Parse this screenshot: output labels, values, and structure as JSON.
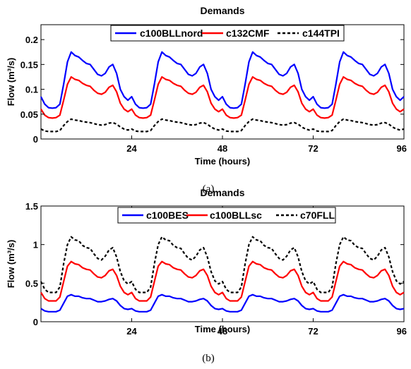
{
  "chart_data": [
    {
      "type": "line",
      "title": "Demands",
      "xlabel": "Time (hours)",
      "ylabel": "Flow (m³/s)",
      "caption": "(a)",
      "xlim": [
        0,
        96
      ],
      "ylim": [
        0,
        0.23
      ],
      "xticks": [
        24,
        48,
        72,
        96
      ],
      "xtick_labels": [
        "24",
        "48",
        "72",
        "96"
      ],
      "yticks": [
        0,
        0.05,
        0.1,
        0.15,
        0.2
      ],
      "ytick_labels": [
        "0",
        "0.05",
        "0.1",
        "0.15",
        "0.2"
      ],
      "legend_position": "top-center",
      "series": [
        {
          "name": "c100BLLnord",
          "color": "#0000ff",
          "style": "solid",
          "x": [
            0,
            1,
            2,
            3,
            4,
            5,
            6,
            7,
            8,
            9,
            10,
            11,
            12,
            13,
            14,
            15,
            16,
            17,
            18,
            19,
            20,
            21,
            22,
            23,
            24
          ],
          "values": [
            0.085,
            0.07,
            0.063,
            0.062,
            0.063,
            0.07,
            0.11,
            0.155,
            0.175,
            0.168,
            0.165,
            0.158,
            0.152,
            0.15,
            0.14,
            0.13,
            0.127,
            0.132,
            0.145,
            0.15,
            0.132,
            0.1,
            0.085,
            0.078,
            0.085
          ]
        },
        {
          "name": "c132CMF",
          "color": "#ff0000",
          "style": "solid",
          "x": [
            0,
            1,
            2,
            3,
            4,
            5,
            6,
            7,
            8,
            9,
            10,
            11,
            12,
            13,
            14,
            15,
            16,
            17,
            18,
            19,
            20,
            21,
            22,
            23,
            24
          ],
          "values": [
            0.06,
            0.048,
            0.043,
            0.042,
            0.043,
            0.048,
            0.078,
            0.11,
            0.125,
            0.12,
            0.118,
            0.112,
            0.108,
            0.106,
            0.098,
            0.092,
            0.09,
            0.094,
            0.104,
            0.108,
            0.095,
            0.072,
            0.06,
            0.055,
            0.06
          ]
        },
        {
          "name": "c144TPI",
          "color": "#000000",
          "style": "dashed",
          "x": [
            0,
            1,
            2,
            3,
            4,
            5,
            6,
            7,
            8,
            9,
            10,
            11,
            12,
            13,
            14,
            15,
            16,
            17,
            18,
            19,
            20,
            21,
            22,
            23,
            24
          ],
          "values": [
            0.02,
            0.016,
            0.015,
            0.015,
            0.015,
            0.017,
            0.027,
            0.035,
            0.04,
            0.038,
            0.037,
            0.035,
            0.034,
            0.033,
            0.031,
            0.029,
            0.028,
            0.029,
            0.032,
            0.033,
            0.03,
            0.024,
            0.02,
            0.018,
            0.02
          ]
        }
      ]
    },
    {
      "type": "line",
      "title": "Demands",
      "xlabel": "Time (hours)",
      "ylabel": "Flow (m³/s)",
      "caption": "(b)",
      "xlim": [
        0,
        96
      ],
      "ylim": [
        0,
        1.5
      ],
      "xticks": [
        24,
        48,
        72,
        96
      ],
      "xtick_labels": [
        "24",
        "48",
        "72",
        "96"
      ],
      "yticks": [
        0,
        0.5,
        1,
        1.5
      ],
      "ytick_labels": [
        "0",
        "0.5",
        "1",
        "1.5"
      ],
      "legend_position": "top-center",
      "series": [
        {
          "name": "c100BES",
          "color": "#0000ff",
          "style": "solid",
          "x": [
            0,
            1,
            2,
            3,
            4,
            5,
            6,
            7,
            8,
            9,
            10,
            11,
            12,
            13,
            14,
            15,
            16,
            17,
            18,
            19,
            20,
            21,
            22,
            23,
            24
          ],
          "values": [
            0.17,
            0.14,
            0.13,
            0.13,
            0.13,
            0.15,
            0.24,
            0.33,
            0.35,
            0.33,
            0.33,
            0.31,
            0.3,
            0.3,
            0.28,
            0.26,
            0.26,
            0.27,
            0.29,
            0.3,
            0.27,
            0.21,
            0.17,
            0.16,
            0.17
          ]
        },
        {
          "name": "c100BLLsc",
          "color": "#ff0000",
          "style": "solid",
          "x": [
            0,
            1,
            2,
            3,
            4,
            5,
            6,
            7,
            8,
            9,
            10,
            11,
            12,
            13,
            14,
            15,
            16,
            17,
            18,
            19,
            20,
            21,
            22,
            23,
            24
          ],
          "values": [
            0.38,
            0.3,
            0.27,
            0.27,
            0.27,
            0.32,
            0.52,
            0.72,
            0.78,
            0.75,
            0.74,
            0.7,
            0.68,
            0.67,
            0.62,
            0.58,
            0.57,
            0.6,
            0.66,
            0.68,
            0.6,
            0.46,
            0.38,
            0.35,
            0.38
          ]
        },
        {
          "name": "c70FLL",
          "color": "#000000",
          "style": "dashed",
          "x": [
            0,
            1,
            2,
            3,
            4,
            5,
            6,
            7,
            8,
            9,
            10,
            11,
            12,
            13,
            14,
            15,
            16,
            17,
            18,
            19,
            20,
            21,
            22,
            23,
            24
          ],
          "values": [
            0.52,
            0.42,
            0.38,
            0.38,
            0.38,
            0.45,
            0.75,
            1.0,
            1.1,
            1.06,
            1.05,
            0.99,
            0.96,
            0.95,
            0.88,
            0.82,
            0.8,
            0.85,
            0.93,
            0.96,
            0.84,
            0.65,
            0.53,
            0.49,
            0.52
          ]
        }
      ]
    }
  ]
}
